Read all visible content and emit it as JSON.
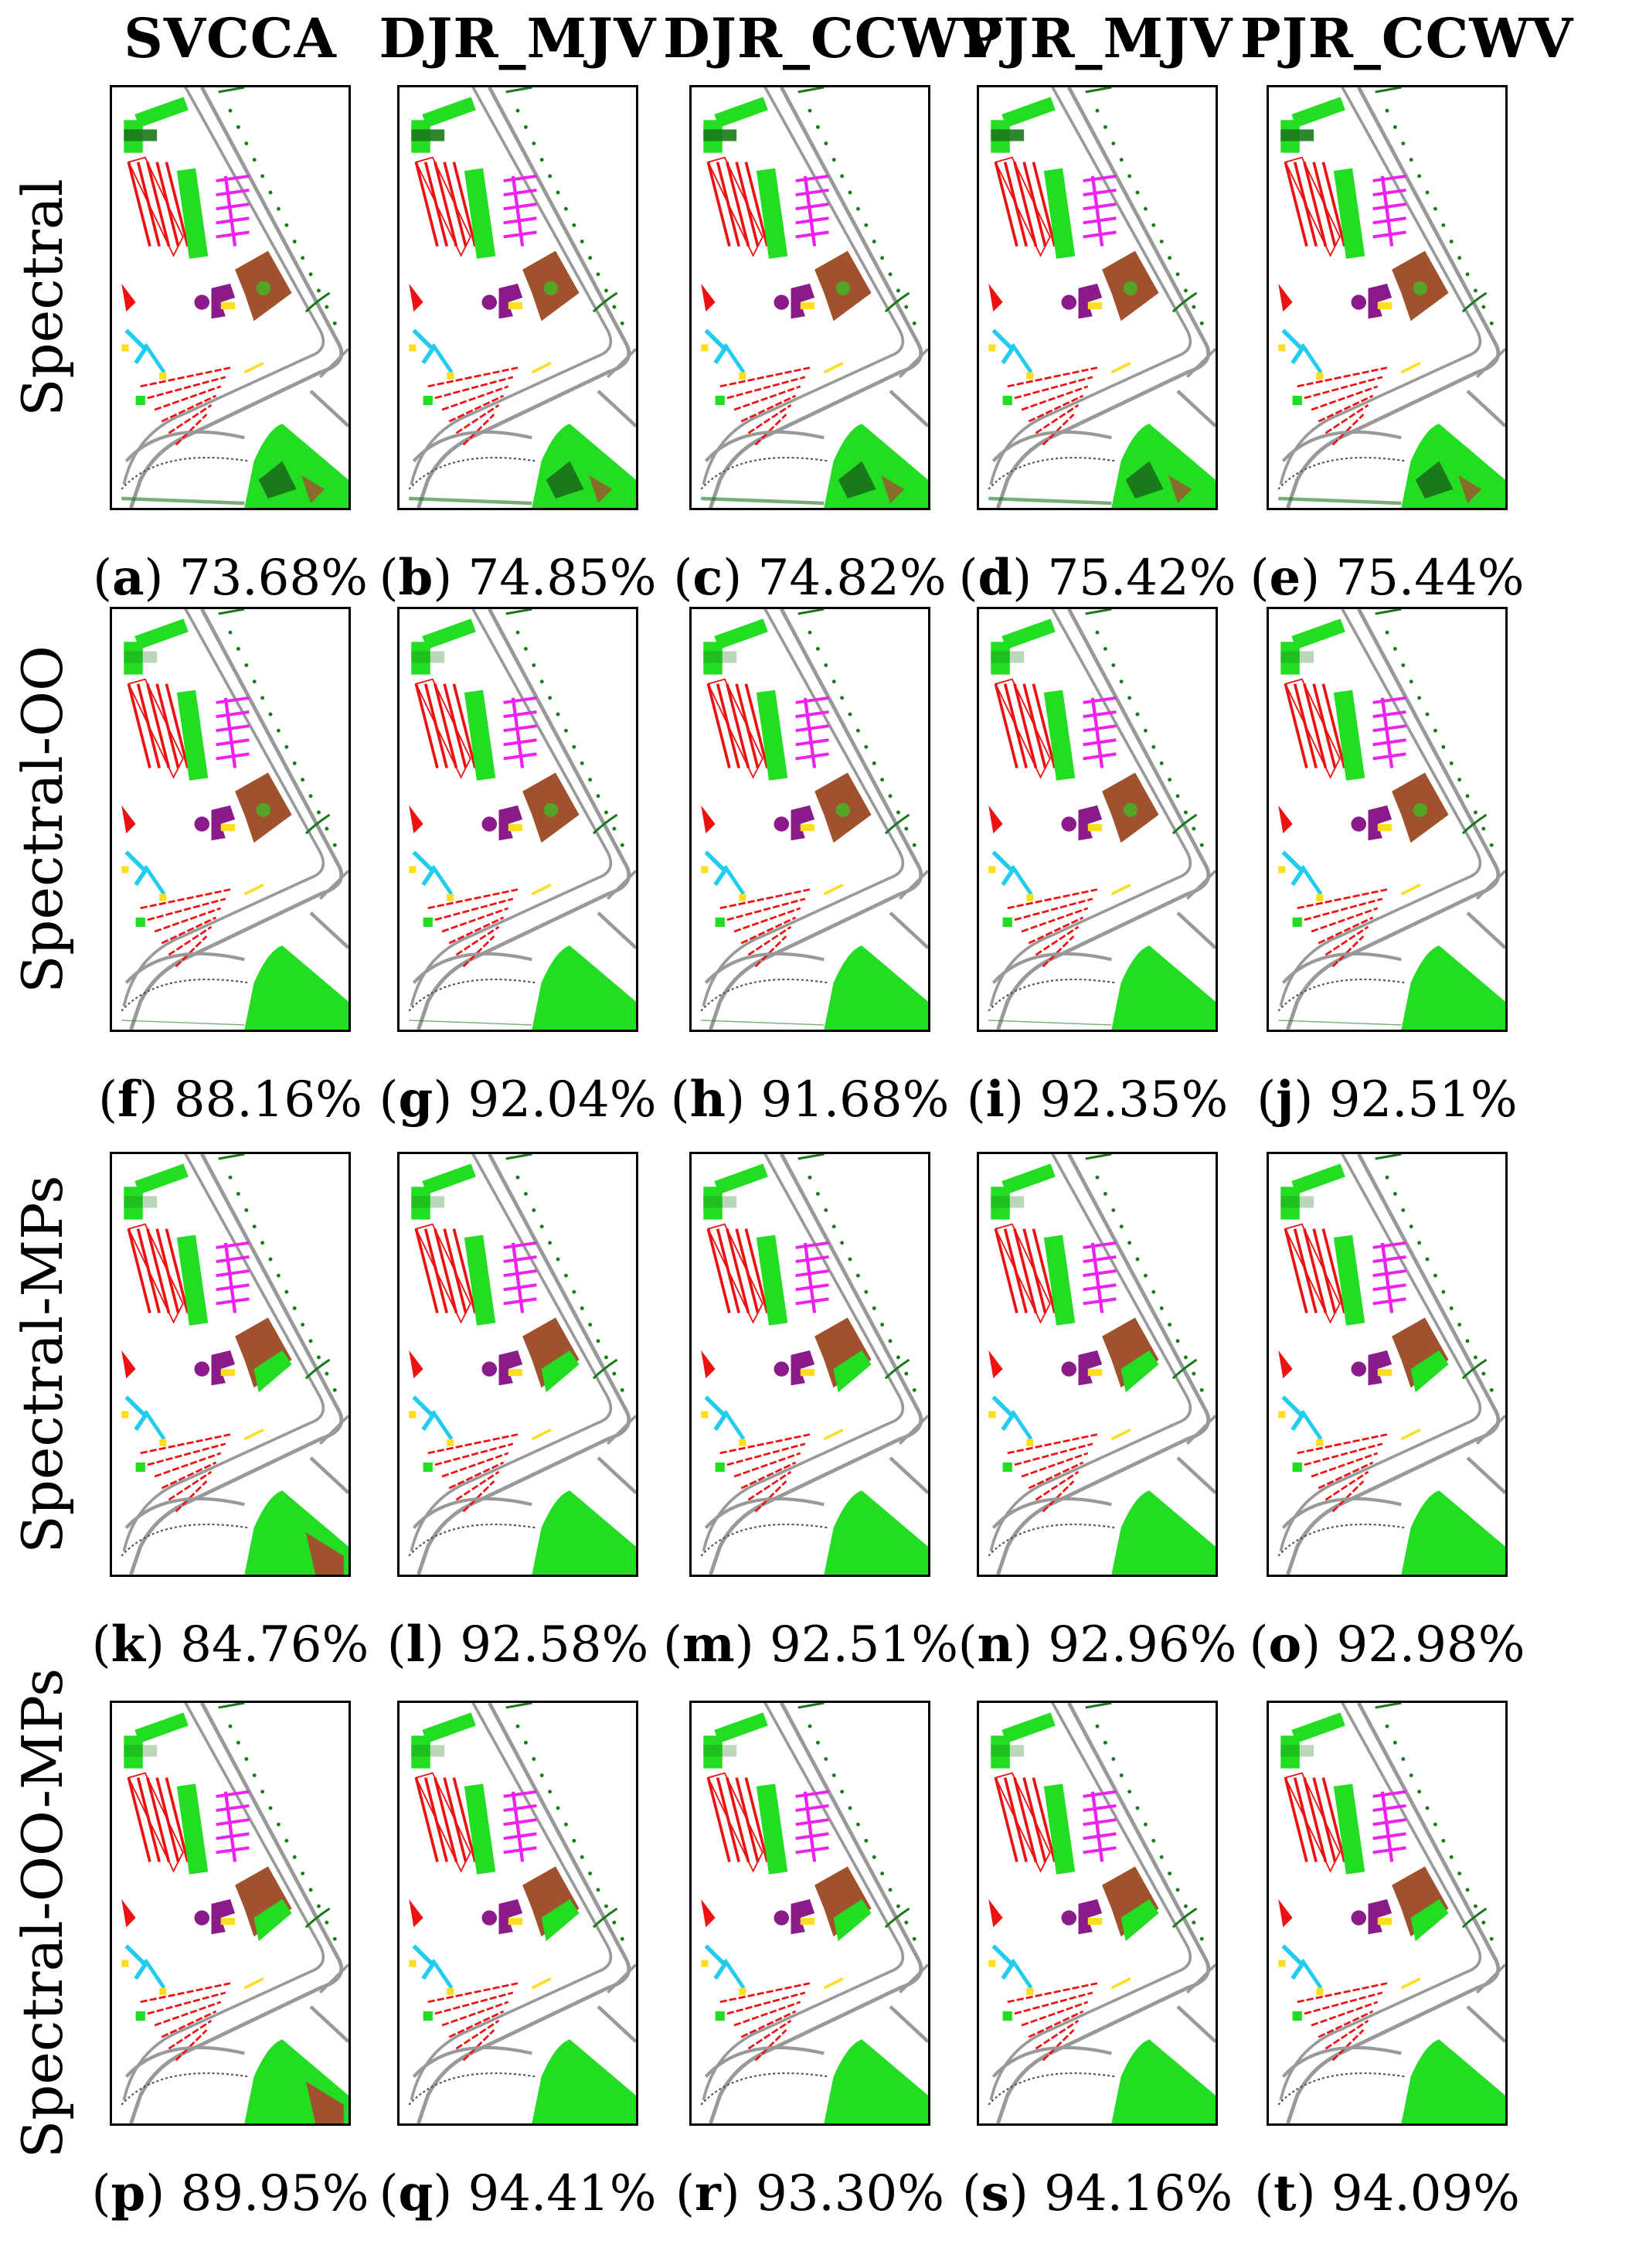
{
  "columns": [
    {
      "label": "SVCCA"
    },
    {
      "label": "DJR_MJV"
    },
    {
      "label": "DJR_CCWV"
    },
    {
      "label": "PJR_MJV"
    },
    {
      "label": "PJR_CCWV"
    }
  ],
  "rows": [
    {
      "label": "Spectral",
      "panels": [
        {
          "letter": "a",
          "accuracy": "73.68%"
        },
        {
          "letter": "b",
          "accuracy": "74.85%"
        },
        {
          "letter": "c",
          "accuracy": "74.82%"
        },
        {
          "letter": "d",
          "accuracy": "75.42%"
        },
        {
          "letter": "e",
          "accuracy": "75.44%"
        }
      ]
    },
    {
      "label": "Spectral-OO",
      "panels": [
        {
          "letter": "f",
          "accuracy": "88.16%"
        },
        {
          "letter": "g",
          "accuracy": "92.04%"
        },
        {
          "letter": "h",
          "accuracy": "91.68%"
        },
        {
          "letter": "i",
          "accuracy": "92.35%"
        },
        {
          "letter": "j",
          "accuracy": "92.51%"
        }
      ]
    },
    {
      "label": "Spectral-MPs",
      "panels": [
        {
          "letter": "k",
          "accuracy": "84.76%"
        },
        {
          "letter": "l",
          "accuracy": "92.58%"
        },
        {
          "letter": "m",
          "accuracy": "92.51%"
        },
        {
          "letter": "n",
          "accuracy": "92.96%"
        },
        {
          "letter": "o",
          "accuracy": "92.98%"
        }
      ]
    },
    {
      "label": "Spectral-OO-MPs",
      "panels": [
        {
          "letter": "p",
          "accuracy": "89.95%"
        },
        {
          "letter": "q",
          "accuracy": "94.41%"
        },
        {
          "letter": "r",
          "accuracy": "93.30%"
        },
        {
          "letter": "s",
          "accuracy": "94.16%"
        },
        {
          "letter": "t",
          "accuracy": "94.09%"
        }
      ]
    }
  ],
  "colors": {
    "meadow": "#22dd22",
    "tree": "#1a7a1a",
    "bricks": "#ee1111",
    "painted_metal": "#ee22ee",
    "bare_soil": "#a0522d",
    "bitumen": "#8b1a8b",
    "shadow": "#22ccee",
    "gravel": "#ffdd22",
    "asphalt": "#999999",
    "road_dark": "#555555"
  }
}
